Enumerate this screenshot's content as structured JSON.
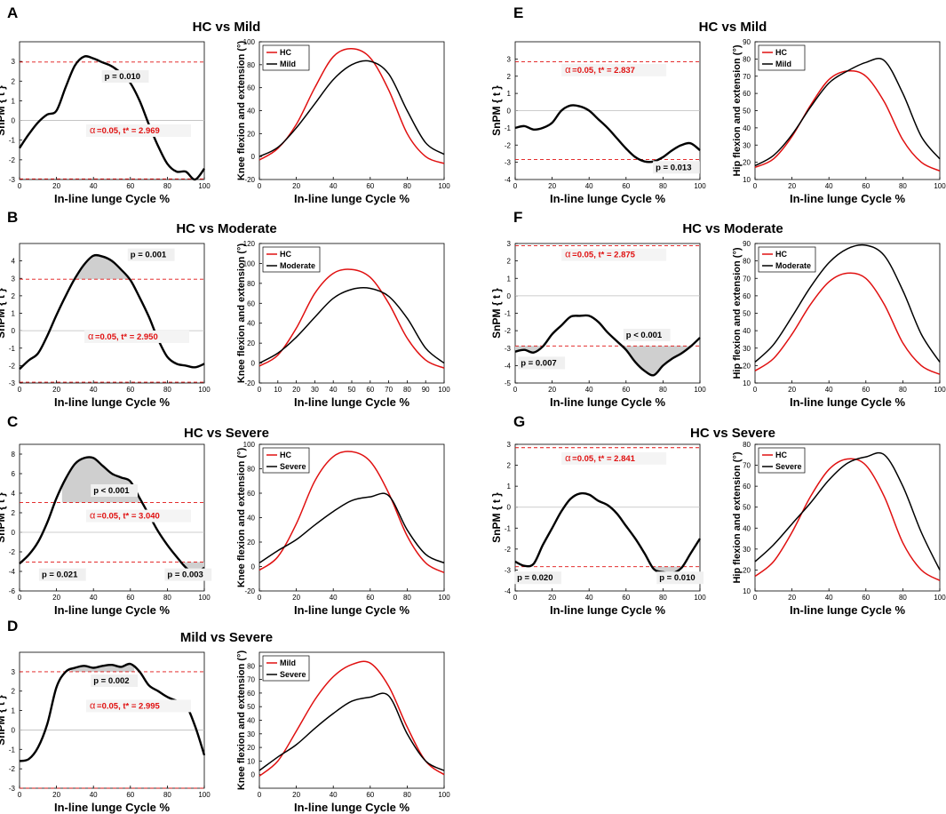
{
  "figure": {
    "xlabel": "In-line lunge Cycle %",
    "ylabel_spm": "SnPM { t }",
    "ylabel_knee": "Knee flexion and extension (°)",
    "ylabel_hip": "Hip flexion and extension (°)",
    "alpha_symbol": "α",
    "colors": {
      "red": "#e01010",
      "black": "#000000",
      "shade": "#cfcfcf",
      "zero_line": "#bdbdbd",
      "axis": "#000000"
    }
  },
  "chart_data": [
    {
      "panel": "A",
      "title": "HC vs Mild",
      "type": "line",
      "spm": {
        "ylim": [
          -3,
          4
        ],
        "yticks": [
          -3,
          -2,
          -1,
          0,
          1,
          2,
          3
        ],
        "xlim": [
          0,
          100
        ],
        "xticks": [
          0,
          20,
          40,
          60,
          80,
          100
        ],
        "threshold": 2.969,
        "threshold_text": "=0.05,    t* = 2.969",
        "x": [
          0,
          5,
          10,
          15,
          20,
          25,
          30,
          35,
          40,
          45,
          50,
          55,
          60,
          65,
          70,
          75,
          80,
          85,
          90,
          95,
          100
        ],
        "values": [
          -1.4,
          -0.7,
          -0.1,
          0.3,
          0.5,
          1.7,
          2.8,
          3.25,
          3.15,
          2.95,
          2.75,
          2.4,
          1.9,
          1.0,
          -0.2,
          -1.3,
          -2.2,
          -2.6,
          -2.6,
          -3.0,
          -2.45
        ],
        "shade": [],
        "labels": [
          {
            "text": "p = 0.010",
            "x": 46,
            "y": 2.1
          }
        ],
        "alpha_pos": [
          38,
          -0.65
        ]
      },
      "series": {
        "ylabel": "knee",
        "ylim": [
          -20,
          100
        ],
        "yticks": [
          -20,
          0,
          20,
          40,
          60,
          80,
          100
        ],
        "xticks": [
          0,
          20,
          40,
          60,
          80,
          100
        ],
        "legend": [
          "HC",
          "Mild"
        ],
        "x": [
          0,
          10,
          20,
          30,
          40,
          50,
          60,
          70,
          80,
          90,
          100
        ],
        "a": [
          -3,
          7,
          28,
          60,
          87,
          94,
          86,
          58,
          20,
          0,
          -6
        ],
        "b": [
          0,
          8,
          25,
          46,
          67,
          80,
          83,
          72,
          40,
          12,
          2
        ],
        "b_color": "black"
      }
    },
    {
      "panel": "B",
      "title": "HC vs Moderate",
      "type": "line",
      "spm": {
        "ylim": [
          -3,
          5
        ],
        "yticks": [
          -3,
          -2,
          -1,
          0,
          1,
          2,
          3,
          4
        ],
        "xlim": [
          0,
          100
        ],
        "xticks": [
          0,
          20,
          40,
          60,
          80,
          100
        ],
        "threshold": 2.95,
        "threshold_text": "=0.05,    t* = 2.950",
        "x": [
          0,
          5,
          10,
          15,
          20,
          25,
          30,
          35,
          40,
          45,
          50,
          55,
          60,
          65,
          70,
          75,
          80,
          85,
          90,
          95,
          100
        ],
        "values": [
          -2.2,
          -1.7,
          -1.3,
          -0.3,
          0.9,
          2.0,
          3.0,
          3.8,
          4.3,
          4.25,
          4.0,
          3.5,
          2.9,
          1.9,
          0.8,
          -0.5,
          -1.5,
          -1.9,
          -2.0,
          -2.1,
          -1.9
        ],
        "shade": [
          [
            31,
            60
          ]
        ],
        "labels": [
          {
            "text": "p = 0.001",
            "x": 60,
            "y": 4.2
          }
        ],
        "alpha_pos": [
          37,
          -0.5
        ]
      },
      "series": {
        "ylabel": "knee",
        "ylim": [
          -20,
          120
        ],
        "yticks": [
          -20,
          0,
          20,
          40,
          60,
          80,
          100,
          120
        ],
        "xticks": [
          10,
          20,
          30,
          40,
          50,
          60,
          70,
          80,
          90,
          100
        ],
        "legend": [
          "HC",
          "Moderate"
        ],
        "x": [
          0,
          10,
          20,
          30,
          40,
          50,
          60,
          70,
          80,
          90,
          100
        ],
        "a": [
          -3,
          8,
          35,
          70,
          90,
          94,
          86,
          60,
          25,
          3,
          -5
        ],
        "b": [
          0,
          10,
          26,
          46,
          65,
          74,
          75,
          67,
          45,
          15,
          0
        ],
        "b_color": "black"
      }
    },
    {
      "panel": "C",
      "title": "HC vs Severe",
      "type": "line",
      "spm": {
        "ylim": [
          -6,
          9
        ],
        "yticks": [
          -6,
          -4,
          -2,
          0,
          2,
          4,
          6,
          8
        ],
        "xlim": [
          0,
          100
        ],
        "xticks": [
          0,
          20,
          40,
          60,
          80,
          100
        ],
        "threshold": 3.04,
        "threshold_text": "=0.05,    t* = 3.040",
        "x": [
          0,
          5,
          10,
          15,
          20,
          25,
          30,
          35,
          40,
          45,
          50,
          55,
          60,
          65,
          70,
          75,
          80,
          85,
          90,
          95,
          100
        ],
        "values": [
          -3.2,
          -2.3,
          -1.0,
          1.0,
          3.5,
          5.5,
          7.0,
          7.6,
          7.6,
          6.8,
          6.0,
          5.6,
          5.2,
          3.5,
          1.8,
          0.1,
          -1.3,
          -2.5,
          -3.6,
          -4.2,
          -3.6
        ],
        "shade": [
          [
            23,
            65
          ],
          [
            89,
            100
          ]
        ],
        "labels": [
          {
            "text": "p < 0.001",
            "x": 40,
            "y": 4.0
          },
          {
            "text": "p = 0.021",
            "x": 12,
            "y": -4.6
          },
          {
            "text": "p = 0.003",
            "x": 80,
            "y": -4.6
          }
        ],
        "alpha_pos": [
          38,
          1.4
        ]
      },
      "series": {
        "ylabel": "knee",
        "ylim": [
          -20,
          100
        ],
        "yticks": [
          -20,
          0,
          20,
          40,
          60,
          80,
          100
        ],
        "xticks": [
          0,
          20,
          40,
          60,
          80,
          100
        ],
        "legend": [
          "HC",
          "Severe"
        ],
        "x": [
          0,
          10,
          20,
          30,
          40,
          50,
          60,
          70,
          80,
          90,
          100
        ],
        "a": [
          -3,
          8,
          35,
          70,
          90,
          94,
          86,
          60,
          25,
          3,
          -5
        ],
        "b": [
          3,
          13,
          22,
          34,
          45,
          54,
          57,
          58,
          30,
          10,
          3
        ],
        "b_color": "black"
      }
    },
    {
      "panel": "D",
      "title": "Mild vs Severe",
      "type": "line",
      "spm": {
        "ylim": [
          -3,
          4
        ],
        "yticks": [
          -3,
          -2,
          -1,
          0,
          1,
          2,
          3
        ],
        "xlim": [
          0,
          100
        ],
        "xticks": [
          0,
          20,
          40,
          60,
          80,
          100
        ],
        "threshold": 2.995,
        "threshold_text": "=0.05,    t* = 2.995",
        "x": [
          0,
          5,
          10,
          15,
          20,
          25,
          30,
          35,
          40,
          45,
          50,
          55,
          60,
          65,
          70,
          75,
          80,
          85,
          90,
          95,
          100
        ],
        "values": [
          -1.6,
          -1.5,
          -0.9,
          0.3,
          2.2,
          3.0,
          3.2,
          3.3,
          3.2,
          3.3,
          3.35,
          3.25,
          3.4,
          3.0,
          2.3,
          2.0,
          1.7,
          1.5,
          1.3,
          0.2,
          -1.3
        ],
        "shade": [
          [
            28,
            62
          ]
        ],
        "labels": [
          {
            "text": "p = 0.002",
            "x": 40,
            "y": 2.4
          }
        ],
        "alpha_pos": [
          38,
          1.1
        ]
      },
      "series": {
        "ylabel": "knee",
        "ylim": [
          -10,
          90
        ],
        "yticks": [
          0,
          10,
          20,
          30,
          40,
          50,
          60,
          70,
          80
        ],
        "xticks": [
          0,
          20,
          40,
          60,
          80,
          100
        ],
        "legend": [
          "Mild",
          "Severe"
        ],
        "x": [
          0,
          10,
          20,
          30,
          40,
          50,
          60,
          70,
          80,
          90,
          100
        ],
        "a": [
          -1,
          10,
          32,
          55,
          72,
          81,
          82,
          65,
          35,
          10,
          0
        ],
        "b": [
          3,
          13,
          22,
          34,
          45,
          54,
          57,
          58,
          30,
          10,
          3
        ],
        "b_color": "black",
        "a_color": "red"
      }
    },
    {
      "panel": "E",
      "title": "HC vs Mild",
      "type": "line",
      "spm": {
        "ylim": [
          -4,
          4
        ],
        "yticks": [
          -4,
          -3,
          -2,
          -1,
          0,
          1,
          2,
          3
        ],
        "xlim": [
          0,
          100
        ],
        "xticks": [
          0,
          20,
          40,
          60,
          80,
          100
        ],
        "threshold": 2.837,
        "threshold_text": "=0.05,    t* = 2.837",
        "x": [
          0,
          5,
          10,
          15,
          20,
          25,
          30,
          35,
          40,
          45,
          50,
          55,
          60,
          65,
          70,
          75,
          80,
          85,
          90,
          95,
          100
        ],
        "values": [
          -1.0,
          -0.9,
          -1.1,
          -1.0,
          -0.7,
          0.0,
          0.3,
          0.25,
          0.0,
          -0.5,
          -1.0,
          -1.6,
          -2.2,
          -2.7,
          -2.95,
          -2.95,
          -2.7,
          -2.3,
          -2.0,
          -1.9,
          -2.3
        ],
        "shade": [],
        "labels": [
          {
            "text": "p = 0.013",
            "x": 76,
            "y": -3.45
          }
        ],
        "alpha_pos": [
          27,
          2.2
        ]
      },
      "series": {
        "ylabel": "hip",
        "ylim": [
          10,
          90
        ],
        "yticks": [
          10,
          20,
          30,
          40,
          50,
          60,
          70,
          80,
          90
        ],
        "xticks": [
          0,
          20,
          40,
          60,
          80,
          100
        ],
        "legend": [
          "HC",
          "Mild"
        ],
        "x": [
          0,
          10,
          20,
          30,
          40,
          50,
          60,
          70,
          80,
          90,
          100
        ],
        "a": [
          17,
          22,
          35,
          53,
          68,
          73,
          70,
          55,
          33,
          20,
          15
        ],
        "b": [
          18,
          24,
          36,
          52,
          66,
          73,
          78,
          79,
          60,
          35,
          22
        ],
        "b_color": "black"
      }
    },
    {
      "panel": "F",
      "title": "HC vs Moderate",
      "type": "line",
      "spm": {
        "ylim": [
          -5,
          3
        ],
        "yticks": [
          -5,
          -4,
          -3,
          -2,
          -1,
          0,
          1,
          2,
          3
        ],
        "xlim": [
          0,
          100
        ],
        "xticks": [
          0,
          20,
          40,
          60,
          80,
          100
        ],
        "threshold": 2.875,
        "threshold_text": "=0.05,    t* = 2.875",
        "x": [
          0,
          5,
          10,
          15,
          20,
          25,
          30,
          35,
          40,
          45,
          50,
          55,
          60,
          65,
          70,
          75,
          80,
          85,
          90,
          95,
          100
        ],
        "values": [
          -3.2,
          -3.1,
          -3.25,
          -2.9,
          -2.2,
          -1.7,
          -1.2,
          -1.15,
          -1.15,
          -1.5,
          -2.1,
          -2.6,
          -3.1,
          -3.8,
          -4.3,
          -4.55,
          -4.0,
          -3.6,
          -3.3,
          -2.9,
          -2.4
        ],
        "shade": [
          [
            0,
            14
          ],
          [
            58,
            95
          ]
        ],
        "labels": [
          {
            "text": "p < 0.001",
            "x": 60,
            "y": -2.4
          },
          {
            "text": "p = 0.007",
            "x": 3,
            "y": -4.0
          }
        ],
        "alpha_pos": [
          27,
          2.2
        ]
      },
      "series": {
        "ylabel": "hip",
        "ylim": [
          10,
          90
        ],
        "yticks": [
          10,
          20,
          30,
          40,
          50,
          60,
          70,
          80,
          90
        ],
        "xticks": [
          0,
          20,
          40,
          60,
          80,
          100
        ],
        "legend": [
          "HC",
          "Moderate"
        ],
        "x": [
          0,
          10,
          20,
          30,
          40,
          50,
          60,
          70,
          80,
          90,
          100
        ],
        "a": [
          17,
          24,
          38,
          55,
          68,
          73,
          70,
          55,
          33,
          20,
          15
        ],
        "b": [
          22,
          32,
          48,
          65,
          79,
          87,
          89,
          83,
          63,
          38,
          22
        ],
        "b_color": "black"
      }
    },
    {
      "panel": "G",
      "title": "HC vs Severe",
      "type": "line",
      "spm": {
        "ylim": [
          -4,
          3
        ],
        "yticks": [
          -4,
          -3,
          -2,
          -1,
          0,
          1,
          2,
          3
        ],
        "xlim": [
          0,
          100
        ],
        "xticks": [
          0,
          20,
          40,
          60,
          80,
          100
        ],
        "threshold": 2.841,
        "threshold_text": "=0.05,    t* = 2.841",
        "x": [
          0,
          5,
          10,
          15,
          20,
          25,
          30,
          35,
          40,
          45,
          50,
          55,
          60,
          65,
          70,
          75,
          80,
          85,
          90,
          95,
          100
        ],
        "values": [
          -2.6,
          -2.8,
          -2.7,
          -1.8,
          -1.0,
          -0.2,
          0.4,
          0.65,
          0.6,
          0.3,
          0.1,
          -0.3,
          -0.9,
          -1.5,
          -2.2,
          -2.95,
          -3.1,
          -3.15,
          -2.9,
          -2.2,
          -1.5
        ],
        "shade": [
          [
            0,
            10
          ],
          [
            74,
            92
          ]
        ],
        "labels": [
          {
            "text": "p = 0.020",
            "x": 1,
            "y": -3.5
          },
          {
            "text": "p = 0.010",
            "x": 78,
            "y": -3.5
          }
        ],
        "alpha_pos": [
          27,
          2.2
        ]
      },
      "series": {
        "ylabel": "hip",
        "ylim": [
          10,
          80
        ],
        "yticks": [
          10,
          20,
          30,
          40,
          50,
          60,
          70,
          80
        ],
        "xticks": [
          0,
          20,
          40,
          60,
          80,
          100
        ],
        "legend": [
          "HC",
          "Severe"
        ],
        "x": [
          0,
          10,
          20,
          30,
          40,
          50,
          60,
          70,
          80,
          90,
          100
        ],
        "a": [
          17,
          24,
          38,
          55,
          68,
          73,
          70,
          55,
          33,
          20,
          15
        ],
        "b": [
          24,
          32,
          42,
          52,
          63,
          71,
          74,
          75,
          60,
          38,
          20
        ],
        "b_color": "black"
      }
    }
  ]
}
